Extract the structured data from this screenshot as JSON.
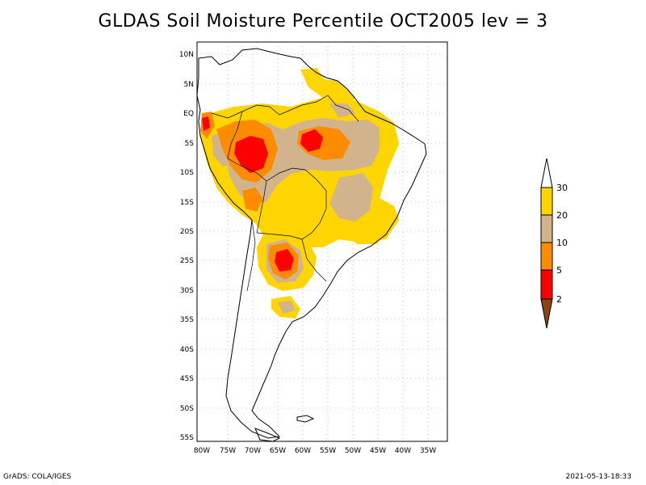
{
  "title": "GLDAS Soil Moisture Percentile OCT2005 lev = 3",
  "footer": {
    "left": "GrADS: COLA/IGES",
    "right": "2021-05-13-18:33"
  },
  "map": {
    "lat_labels": [
      "10N",
      "5N",
      "EQ",
      "5S",
      "10S",
      "15S",
      "20S",
      "25S",
      "30S",
      "35S",
      "40S",
      "45S",
      "50S",
      "55S"
    ],
    "lon_labels": [
      "80W",
      "75W",
      "70W",
      "65W",
      "60W",
      "55W",
      "50W",
      "45W",
      "40W",
      "35W"
    ]
  },
  "legend": {
    "labels": [
      "30",
      "20",
      "10",
      "5",
      "2"
    ],
    "colors": {
      "above30": "#ffffff",
      "c20_30": "#ffd500",
      "c10_20": "#d2b48c",
      "c5_10": "#ff8c00",
      "c2_5": "#ff0000",
      "below2": "#8b4513"
    }
  }
}
